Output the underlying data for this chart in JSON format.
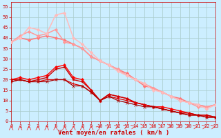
{
  "background_color": "#cceeff",
  "grid_color": "#aacccc",
  "xlabel": "Vent moyen/en rafales ( km/h )",
  "ylim": [
    0,
    57
  ],
  "xlim": [
    0,
    23
  ],
  "yticks": [
    0,
    5,
    10,
    15,
    20,
    25,
    30,
    35,
    40,
    45,
    50,
    55
  ],
  "xticks": [
    0,
    1,
    2,
    3,
    4,
    5,
    6,
    7,
    8,
    9,
    10,
    11,
    12,
    13,
    14,
    15,
    16,
    17,
    18,
    19,
    20,
    21,
    22,
    23
  ],
  "lines": [
    {
      "x": [
        0,
        1,
        2,
        3,
        4,
        5,
        6,
        7,
        8,
        9,
        10,
        11,
        12,
        13,
        14,
        15,
        16,
        17,
        18,
        19,
        20,
        21,
        22,
        23
      ],
      "y": [
        20,
        21,
        20,
        21,
        22,
        26,
        27,
        21,
        20,
        15,
        10,
        13,
        12,
        11,
        9,
        8,
        7,
        7,
        6,
        5,
        4,
        3,
        3,
        2
      ],
      "color": "#ff0000",
      "lw": 1.0,
      "marker": "D",
      "ms": 2.0
    },
    {
      "x": [
        0,
        1,
        2,
        3,
        4,
        5,
        6,
        7,
        8,
        9,
        10,
        11,
        12,
        13,
        14,
        15,
        16,
        17,
        18,
        19,
        20,
        21,
        22,
        23
      ],
      "y": [
        20,
        20,
        19,
        20,
        21,
        25,
        26,
        20,
        19,
        15,
        10,
        13,
        12,
        11,
        9,
        8,
        7,
        6,
        5,
        4,
        4,
        3,
        3,
        2
      ],
      "color": "#cc0000",
      "lw": 1.0,
      "marker": "s",
      "ms": 1.8
    },
    {
      "x": [
        0,
        1,
        2,
        3,
        4,
        5,
        6,
        7,
        8,
        9,
        10,
        11,
        12,
        13,
        14,
        15,
        16,
        17,
        18,
        19,
        20,
        21,
        22,
        23
      ],
      "y": [
        19,
        20,
        19,
        19,
        20,
        20,
        20,
        18,
        17,
        14,
        10,
        12,
        11,
        10,
        9,
        8,
        7,
        6,
        5,
        4,
        3,
        3,
        2,
        2
      ],
      "color": "#dd0000",
      "lw": 0.9,
      "marker": "+",
      "ms": 2.5
    },
    {
      "x": [
        0,
        1,
        2,
        3,
        4,
        5,
        6,
        7,
        8,
        9,
        10,
        11,
        12,
        13,
        14,
        15,
        16,
        17,
        18,
        19,
        20,
        21,
        22,
        23
      ],
      "y": [
        19,
        20,
        19,
        19,
        19,
        20,
        20,
        17,
        17,
        14,
        10,
        12,
        10,
        9,
        8,
        7,
        7,
        6,
        5,
        4,
        3,
        3,
        2,
        2
      ],
      "color": "#aa0000",
      "lw": 0.9,
      "marker": "x",
      "ms": 2.5
    },
    {
      "x": [
        0,
        1,
        2,
        3,
        4,
        5,
        6,
        7,
        8,
        9,
        10,
        11,
        12,
        13,
        14,
        15,
        16,
        17,
        18,
        19,
        20,
        21,
        22,
        23
      ],
      "y": [
        38,
        40,
        39,
        40,
        41,
        40,
        39,
        37,
        35,
        31,
        29,
        27,
        25,
        23,
        20,
        17,
        16,
        14,
        12,
        11,
        9,
        8,
        7,
        8
      ],
      "color": "#ff7777",
      "lw": 1.1,
      "marker": "D",
      "ms": 2.2
    },
    {
      "x": [
        0,
        1,
        2,
        3,
        4,
        5,
        6,
        7,
        8,
        9,
        10,
        11,
        12,
        13,
        14,
        15,
        16,
        17,
        18,
        19,
        20,
        21,
        22,
        23
      ],
      "y": [
        38,
        41,
        43,
        41,
        42,
        44,
        38,
        37,
        35,
        31,
        29,
        27,
        25,
        22,
        20,
        18,
        16,
        14,
        12,
        10,
        9,
        7,
        7,
        8
      ],
      "color": "#ff9999",
      "lw": 1.1,
      "marker": "D",
      "ms": 2.2
    },
    {
      "x": [
        0,
        1,
        2,
        3,
        4,
        5,
        6,
        7,
        8,
        9,
        10,
        11,
        12,
        13,
        14,
        15,
        16,
        17,
        18,
        19,
        20,
        21,
        22,
        23
      ],
      "y": [
        38,
        40,
        45,
        44,
        42,
        51,
        52,
        40,
        37,
        33,
        29,
        27,
        24,
        22,
        20,
        18,
        15,
        14,
        12,
        10,
        9,
        8,
        6,
        8
      ],
      "color": "#ffbbbb",
      "lw": 1.1,
      "marker": "D",
      "ms": 2.2
    }
  ],
  "arrow_angles": [
    90,
    90,
    90,
    90,
    90,
    90,
    90,
    90,
    90,
    90,
    75,
    65,
    60,
    55,
    45,
    10,
    10,
    10,
    10,
    10,
    10,
    45,
    45,
    45
  ],
  "xlabel_fontsize": 6.5,
  "tick_fontsize": 5
}
